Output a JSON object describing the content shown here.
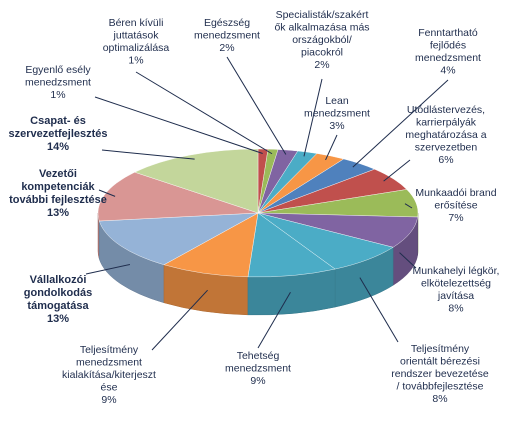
{
  "chart_data": {
    "type": "pie",
    "title": "",
    "style": "3d-exploded-none",
    "start": "top, clockwise",
    "slices": [
      {
        "label": [
          "Egyenlő esély",
          "menedzsment",
          "1%"
        ],
        "value": 1,
        "color": "#c0504d",
        "bold": false
      },
      {
        "label": [
          "Béren kívüli",
          "juttatások",
          "optimalizálása",
          "1%"
        ],
        "value": 1,
        "color": "#9bbb59",
        "bold": false
      },
      {
        "label": [
          "Egészség",
          "menedzsment",
          "2%"
        ],
        "value": 2,
        "color": "#8064a2",
        "bold": false
      },
      {
        "label": [
          "Specialisták/szakért",
          "ők alkalmazása más",
          "országokból/",
          "piacokról",
          "2%"
        ],
        "value": 2,
        "color": "#4bacc6",
        "bold": false
      },
      {
        "label": [
          "Lean",
          "menedzsment",
          "3%"
        ],
        "value": 3,
        "color": "#f79646",
        "bold": false
      },
      {
        "label": [
          "Fenntartható",
          "fejlődés",
          "menedzsment",
          "4%"
        ],
        "value": 4,
        "color": "#4f81bd",
        "bold": false
      },
      {
        "label": [
          "Utódlástervezés,",
          "karrierpályák",
          "meghatározása a",
          "szervezetben",
          "6%"
        ],
        "value": 6,
        "color": "#c0504d",
        "bold": false
      },
      {
        "label": [
          "Munkaadói brand",
          "erősítése",
          "7%"
        ],
        "value": 7,
        "color": "#9bbb59",
        "bold": false
      },
      {
        "label": [
          "Munkahelyi légkör,",
          "elkötelezettség",
          "javítása",
          "8%"
        ],
        "value": 8,
        "color": "#8064a2",
        "bold": false
      },
      {
        "label": [
          "Teljesítmény",
          "orientált bérezési",
          "rendszer bevezetése",
          "/ továbbfejlesztése",
          "8%"
        ],
        "value": 8,
        "color": "#4bacc6",
        "bold": false
      },
      {
        "label": [
          "Tehetség",
          "menedzsment",
          "9%"
        ],
        "value": 9,
        "color": "#4bacc6",
        "bold": false
      },
      {
        "label": [
          "Teljesítmény",
          "menedzsment",
          "kialakítása/kiterjeszt",
          "ése",
          "9%"
        ],
        "value": 9,
        "color": "#f79646",
        "bold": false
      },
      {
        "label": [
          "Vállalkozói",
          "gondolkodás",
          "támogatása",
          "13%"
        ],
        "value": 13,
        "color": "#95b3d7",
        "bold": true
      },
      {
        "label": [
          "Vezetői",
          "kompetenciák",
          "további fejlesztése",
          "13%"
        ],
        "value": 13,
        "color": "#d99694",
        "bold": true
      },
      {
        "label": [
          "Csapat- és",
          "szervezetfejlesztés",
          "14%"
        ],
        "value": 14,
        "color": "#c3d69b",
        "bold": true
      }
    ]
  }
}
